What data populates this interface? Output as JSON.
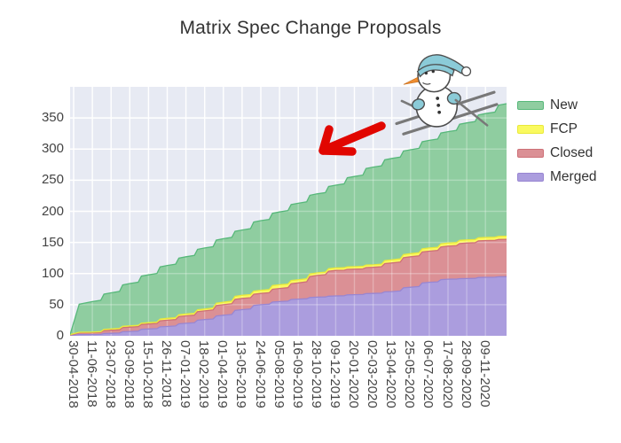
{
  "chart_data": {
    "type": "area",
    "stacked": true,
    "title": "Matrix Spec Change Proposals",
    "xlabel": "",
    "ylabel": "",
    "ylim": [
      0,
      400
    ],
    "y_ticks": [
      0,
      50,
      100,
      150,
      200,
      250,
      300,
      350
    ],
    "grid": true,
    "legend_position": "right",
    "categories": [
      "30-04-2018",
      "11-06-2018",
      "23-07-2018",
      "03-09-2018",
      "15-10-2018",
      "26-11-2018",
      "07-01-2019",
      "18-02-2019",
      "01-04-2019",
      "13-05-2019",
      "24-06-2019",
      "05-08-2019",
      "16-09-2019",
      "28-10-2019",
      "09-12-2019",
      "20-01-2020",
      "02-03-2020",
      "13-04-2020",
      "25-05-2020",
      "06-07-2020",
      "17-08-2020",
      "28-09-2020",
      "09-11-2020"
    ],
    "stack_order_bottom_to_top": [
      "Merged",
      "Closed",
      "FCP",
      "New"
    ],
    "series": [
      {
        "name": "New",
        "values": [
          0,
          49,
          58,
          68,
          77,
          85,
          92,
          98,
          102,
          105,
          112,
          117,
          123,
          127,
          133,
          145,
          157,
          163,
          167,
          173,
          179,
          188,
          199
        ],
        "right_edge_value": 213,
        "fill": "#8FCDA0",
        "line": "#57B87A"
      },
      {
        "name": "FCP",
        "values": [
          1,
          1,
          2,
          2,
          2,
          3,
          3,
          3,
          4,
          5,
          5,
          6,
          5,
          4,
          4,
          4,
          4,
          5,
          5,
          5,
          5,
          5,
          5
        ],
        "right_edge_value": 5,
        "fill": "#FAFA5F",
        "line": "#E9E93A"
      },
      {
        "name": "Closed",
        "values": [
          1,
          3,
          5,
          7,
          8,
          10,
          12,
          14,
          17,
          18,
          18,
          21,
          26,
          35,
          41,
          41,
          42,
          46,
          49,
          50,
          53,
          57,
          59
        ],
        "right_edge_value": 60,
        "fill": "#DB9095",
        "line": "#CE7077"
      },
      {
        "name": "Merged",
        "values": [
          0,
          2,
          4,
          7,
          11,
          15,
          20,
          26,
          33,
          42,
          50,
          55,
          59,
          62,
          64,
          66,
          68,
          71,
          78,
          86,
          91,
          92,
          94
        ],
        "right_edge_value": 95,
        "fill": "#AB9DDE",
        "line": "#9886D2"
      }
    ]
  },
  "style": {
    "plot_bg": "#E7EAF3",
    "grid_color": "#FFFFFF",
    "tick_label_color": "#444444",
    "title_color": "#333333",
    "arrow_color": "#E10600",
    "snowman_hat": "#8BCBD8",
    "snowman_outline": "#4D4D4D",
    "snowman_ski": "#787878",
    "snowman_carrot": "#EE8D31"
  },
  "decorations": {
    "snowman": "snowman-skiing-illustration",
    "arrow": "red-arrow-annotation"
  }
}
